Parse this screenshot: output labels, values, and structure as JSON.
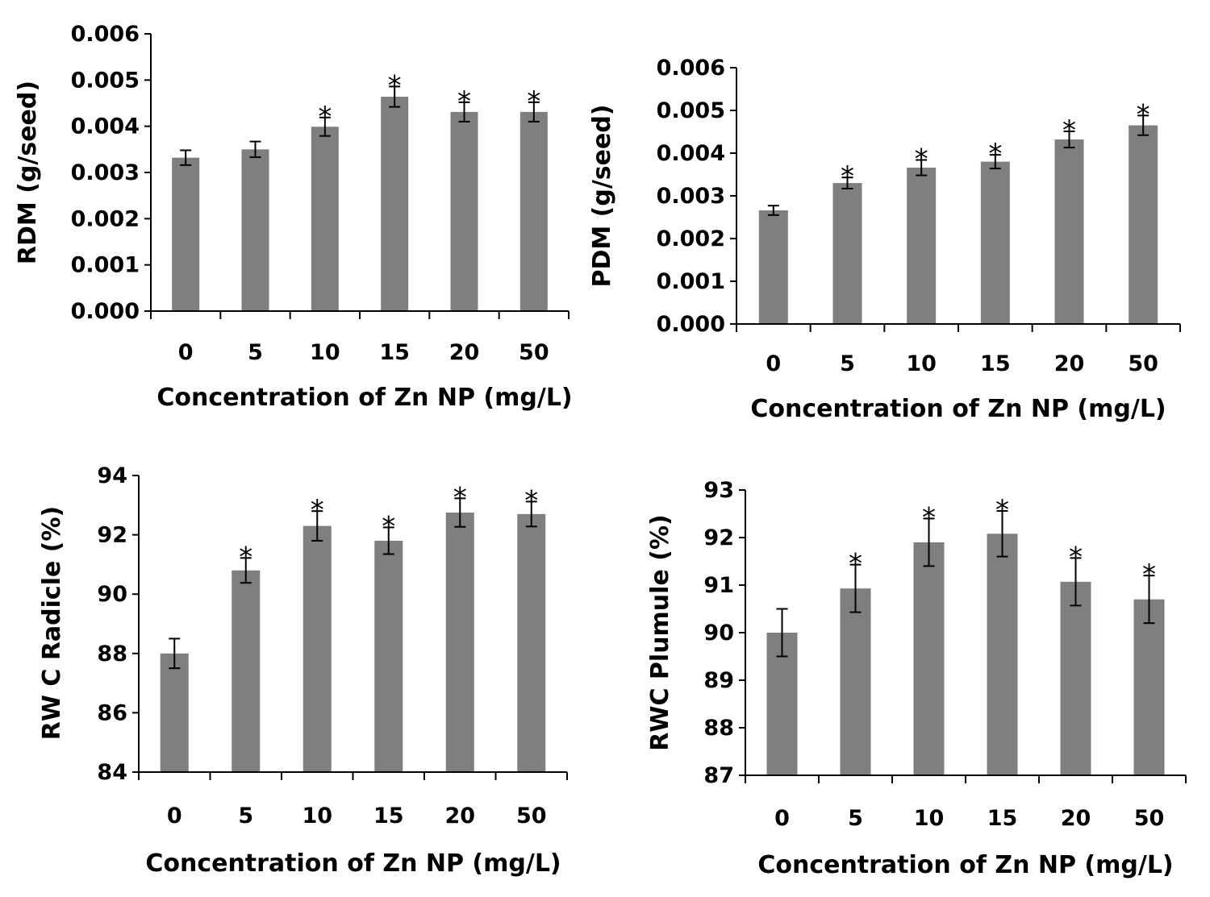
{
  "colors": {
    "bar": "#7f7f7f",
    "axis": "#000000",
    "error_bar": "#000000",
    "background": "#ffffff"
  },
  "chart_data": [
    {
      "type": "bar",
      "categories": [
        "0",
        "5",
        "10",
        "15",
        "20",
        "50"
      ],
      "values": [
        0.00332,
        0.0035,
        0.00399,
        0.00464,
        0.00431,
        0.00431
      ],
      "errors": [
        0.00016,
        0.00017,
        0.0002,
        0.00022,
        0.00021,
        0.00021
      ],
      "significance": [
        "",
        "",
        "*",
        "*",
        "*",
        "*"
      ],
      "xlabel": "Concentration of Zn NP (mg/L)",
      "ylabel": "RDM (g/seed)",
      "ylim": [
        0,
        0.006
      ],
      "yticks": [
        "0.000",
        "0.001",
        "0.002",
        "0.003",
        "0.004",
        "0.005",
        "0.006"
      ],
      "grid": false,
      "legend": "none"
    },
    {
      "type": "bar",
      "categories": [
        "0",
        "5",
        "10",
        "15",
        "20",
        "50"
      ],
      "values": [
        0.00266,
        0.0033,
        0.00366,
        0.0038,
        0.00432,
        0.00465
      ],
      "errors": [
        0.00011,
        0.00013,
        0.00018,
        0.00016,
        0.00019,
        0.00023
      ],
      "significance": [
        "",
        "*",
        "*",
        "*",
        "*",
        "*"
      ],
      "xlabel": "Concentration of Zn NP (mg/L)",
      "ylabel": "PDM (g/seed)",
      "ylim": [
        0,
        0.006
      ],
      "yticks": [
        "0.000",
        "0.001",
        "0.002",
        "0.003",
        "0.004",
        "0.005",
        "0.006"
      ],
      "grid": false,
      "legend": "none"
    },
    {
      "type": "bar",
      "categories": [
        "0",
        "5",
        "10",
        "15",
        "20",
        "50"
      ],
      "values": [
        88.0,
        90.8,
        92.3,
        91.8,
        92.75,
        92.7
      ],
      "errors": [
        0.5,
        0.42,
        0.5,
        0.45,
        0.48,
        0.42
      ],
      "significance": [
        "",
        "*",
        "*",
        "*",
        "*",
        "*"
      ],
      "xlabel": "Concentration of Zn NP (mg/L)",
      "ylabel": "RW C Radicle (%)",
      "ylim": [
        84,
        94
      ],
      "yticks": [
        "84",
        "86",
        "88",
        "90",
        "92",
        "94"
      ],
      "grid": false,
      "legend": "none"
    },
    {
      "type": "bar",
      "categories": [
        "0",
        "5",
        "10",
        "15",
        "20",
        "50"
      ],
      "values": [
        90.0,
        90.93,
        91.9,
        92.08,
        91.07,
        90.7
      ],
      "errors": [
        0.5,
        0.5,
        0.5,
        0.48,
        0.5,
        0.5
      ],
      "significance": [
        "",
        "*",
        "*",
        "*",
        "*",
        "*"
      ],
      "xlabel": "Concentration of Zn NP (mg/L)",
      "ylabel": "RWC Plumule (%)",
      "ylim": [
        87,
        93
      ],
      "yticks": [
        "87",
        "88",
        "89",
        "90",
        "91",
        "92",
        "93"
      ],
      "grid": false,
      "legend": "none"
    }
  ]
}
